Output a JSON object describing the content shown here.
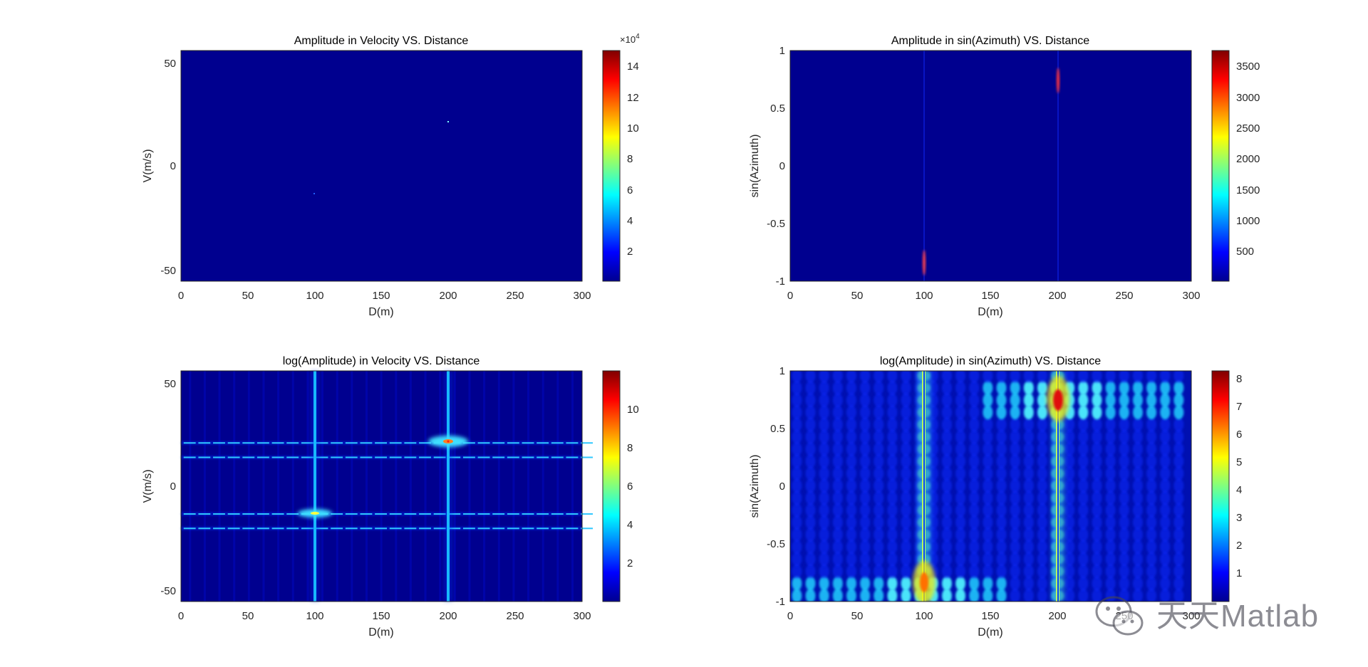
{
  "colors": {
    "jet_low": "#00008f",
    "jet_high": "#800000",
    "axis": "#262626",
    "background": "#ffffff"
  },
  "chart_data": [
    {
      "type": "heatmap",
      "id": "amp-vel",
      "title": "Amplitude in Velocity VS. Distance",
      "xlabel": "D(m)",
      "ylabel": "V(m/s)",
      "xlim": [
        0,
        300
      ],
      "ylim": [
        -56,
        56
      ],
      "xticks": [
        "0",
        "50",
        "100",
        "150",
        "200",
        "250",
        "300"
      ],
      "yticks": [
        "-50",
        "0",
        "50"
      ],
      "colorbar": {
        "min": 0,
        "max": 150000,
        "multiplier": "×10",
        "exponent": "4",
        "ticks": [
          "2",
          "4",
          "6",
          "8",
          "10",
          "12",
          "14"
        ]
      },
      "peaks": [
        {
          "d": 100,
          "v": -13.5,
          "value": 150000
        },
        {
          "d": 200,
          "v": 21,
          "value": 150000
        }
      ]
    },
    {
      "type": "heatmap",
      "id": "amp-az",
      "title": "Amplitude in sin(Azimuth) VS. Distance",
      "xlabel": "D(m)",
      "ylabel": "sin(Azimuth)",
      "xlim": [
        0,
        300
      ],
      "ylim": [
        -1,
        1
      ],
      "xticks": [
        "0",
        "50",
        "100",
        "150",
        "200",
        "250",
        "300"
      ],
      "yticks": [
        "-1",
        "-0.5",
        "0",
        "0.5",
        "1"
      ],
      "colorbar": {
        "min": 0,
        "max": 3800,
        "ticks": [
          "500",
          "1000",
          "1500",
          "2000",
          "2500",
          "3000",
          "3500"
        ]
      },
      "peaks": [
        {
          "d": 100,
          "s": -0.85,
          "value": 3000
        },
        {
          "d": 200,
          "s": 0.75,
          "value": 3800
        }
      ]
    },
    {
      "type": "heatmap",
      "id": "log-vel",
      "title": "log(Amplitude) in Velocity VS. Distance",
      "xlabel": "D(m)",
      "ylabel": "V(m/s)",
      "xlim": [
        0,
        300
      ],
      "ylim": [
        -56,
        56
      ],
      "xticks": [
        "0",
        "50",
        "100",
        "150",
        "200",
        "250",
        "300"
      ],
      "yticks": [
        "-50",
        "0",
        "50"
      ],
      "colorbar": {
        "min": 0,
        "max": 12,
        "ticks": [
          "2",
          "4",
          "6",
          "8",
          "10"
        ]
      },
      "peaks": [
        {
          "d": 100,
          "v": -13.5,
          "value": 11.9
        },
        {
          "d": 200,
          "v": 21,
          "value": 11.9
        }
      ],
      "horizontal_lines_v": [
        21,
        14,
        -13.5,
        -20.5
      ]
    },
    {
      "type": "heatmap",
      "id": "log-az",
      "title": "log(Amplitude) in sin(Azimuth) VS. Distance",
      "xlabel": "D(m)",
      "ylabel": "sin(Azimuth)",
      "xlim": [
        0,
        300
      ],
      "ylim": [
        -1,
        1
      ],
      "xticks": [
        "0",
        "50",
        "100",
        "150",
        "200",
        "250",
        "300"
      ],
      "yticks": [
        "-1",
        "-0.5",
        "0",
        "0.5",
        "1"
      ],
      "colorbar": {
        "min": 0,
        "max": 8.3,
        "ticks": [
          "1",
          "2",
          "3",
          "4",
          "5",
          "6",
          "7",
          "8"
        ]
      },
      "peaks": [
        {
          "d": 100,
          "s": -0.85,
          "value": 8
        },
        {
          "d": 200,
          "s": 0.75,
          "value": 8.2
        }
      ]
    }
  ],
  "watermark": {
    "text": "天天Matlab",
    "icon": "wechat-icon"
  }
}
